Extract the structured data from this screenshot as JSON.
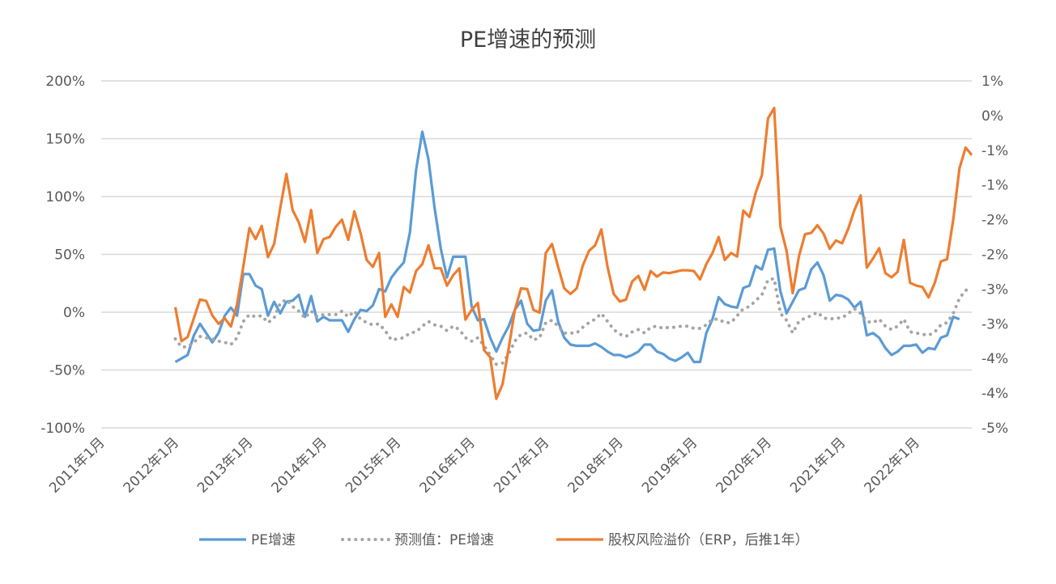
{
  "chart_data": {
    "type": "line",
    "title": "PE增速的预测",
    "x_axis": {
      "type": "date",
      "range": [
        "2011-01",
        "2022-10"
      ],
      "tick_labels": [
        "2011年1月",
        "2012年1月",
        "2013年1月",
        "2014年1月",
        "2015年1月",
        "2016年1月",
        "2017年1月",
        "2018年1月",
        "2019年1月",
        "2020年1月",
        "2021年1月",
        "2022年1月"
      ],
      "tick_dates": [
        "2011-01",
        "2012-01",
        "2013-01",
        "2014-01",
        "2015-01",
        "2016-01",
        "2017-01",
        "2018-01",
        "2019-01",
        "2020-01",
        "2021-01",
        "2022-01"
      ]
    },
    "y_left": {
      "range": [
        -100,
        200
      ],
      "unit": "%",
      "ticks": [
        200,
        150,
        100,
        50,
        0,
        -50,
        -100
      ],
      "tick_labels": [
        "200%",
        "150%",
        "100%",
        "50%",
        "0%",
        "-50%",
        "-100%"
      ]
    },
    "y_right": {
      "range": [
        -4.5,
        0.5
      ],
      "unit": "%",
      "ticks": [
        0.5,
        0,
        -0.5,
        -1,
        -1.5,
        -2,
        -2.5,
        -3,
        -3.5,
        -4,
        -4.5
      ],
      "tick_labels": [
        "1%",
        "0%",
        "-1%",
        "-1%",
        "-2%",
        "-2%",
        "-3%",
        "-3%",
        "-4%",
        "-4%",
        "-5%"
      ]
    },
    "grid": true,
    "legend_position": "bottom",
    "x": [
      "2012-01",
      "2012-02",
      "2012-03",
      "2012-04",
      "2012-05",
      "2012-06",
      "2012-07",
      "2012-08",
      "2012-09",
      "2012-10",
      "2012-11",
      "2012-12",
      "2013-01",
      "2013-02",
      "2013-03",
      "2013-04",
      "2013-05",
      "2013-06",
      "2013-07",
      "2013-08",
      "2013-09",
      "2013-10",
      "2013-11",
      "2013-12",
      "2014-01",
      "2014-02",
      "2014-03",
      "2014-04",
      "2014-05",
      "2014-06",
      "2014-07",
      "2014-08",
      "2014-09",
      "2014-10",
      "2014-11",
      "2014-12",
      "2015-01",
      "2015-02",
      "2015-03",
      "2015-04",
      "2015-05",
      "2015-06",
      "2015-07",
      "2015-08",
      "2015-09",
      "2015-10",
      "2015-11",
      "2015-12",
      "2016-01",
      "2016-02",
      "2016-03",
      "2016-04",
      "2016-05",
      "2016-06",
      "2016-07",
      "2016-08",
      "2016-09",
      "2016-10",
      "2016-11",
      "2016-12",
      "2017-01",
      "2017-02",
      "2017-03",
      "2017-04",
      "2017-05",
      "2017-06",
      "2017-07",
      "2017-08",
      "2017-09",
      "2017-10",
      "2017-11",
      "2017-12",
      "2018-01",
      "2018-02",
      "2018-03",
      "2018-04",
      "2018-05",
      "2018-06",
      "2018-07",
      "2018-08",
      "2018-09",
      "2018-10",
      "2018-11",
      "2018-12",
      "2019-01",
      "2019-02",
      "2019-03",
      "2019-04",
      "2019-05",
      "2019-06",
      "2019-07",
      "2019-08",
      "2019-09",
      "2019-10",
      "2019-11",
      "2019-12",
      "2020-01",
      "2020-02",
      "2020-03",
      "2020-04",
      "2020-05",
      "2020-06",
      "2020-07",
      "2020-08",
      "2020-09",
      "2020-10",
      "2020-11",
      "2020-12",
      "2021-01",
      "2021-02",
      "2021-03",
      "2021-04",
      "2021-05",
      "2021-06",
      "2021-07",
      "2021-08",
      "2021-09",
      "2021-10",
      "2021-11",
      "2021-12",
      "2022-01",
      "2022-02",
      "2022-03",
      "2022-04",
      "2022-05",
      "2022-06",
      "2022-07",
      "2022-08",
      "2022-09",
      "2022-10"
    ],
    "series": [
      {
        "name": "PE增速",
        "axis": "left",
        "color": "#5B9BD5",
        "style": "solid",
        "values": [
          -43,
          -40,
          -37,
          -20,
          -10,
          -18,
          -26,
          -18,
          -3,
          4,
          -3,
          33,
          33,
          23,
          20,
          -3,
          9,
          -1,
          9,
          10,
          15,
          -4,
          14,
          -8,
          -4,
          -7,
          -7,
          -7,
          -17,
          -6,
          2,
          1,
          6,
          20,
          18,
          30,
          37,
          43,
          69,
          123,
          156,
          132,
          90,
          55,
          30,
          48,
          48,
          48,
          5,
          -7,
          -6,
          -22,
          -34,
          -22,
          -12,
          2,
          10,
          -10,
          -16,
          -15,
          10,
          19,
          -8,
          -22,
          -28,
          -29,
          -29,
          -29,
          -27,
          -30,
          -34,
          -37,
          -37,
          -39,
          -37,
          -34,
          -28,
          -28,
          -34,
          -36,
          -40,
          -42,
          -39,
          -35,
          -43,
          -43,
          -18,
          -6,
          13,
          7,
          5,
          4,
          21,
          23,
          40,
          37,
          54,
          55,
          18,
          -1,
          9,
          19,
          21,
          37,
          43,
          32,
          10,
          15,
          14,
          11,
          4,
          9,
          -20,
          -18,
          -22,
          -31,
          -37,
          -34,
          -29,
          -29,
          -28,
          -35,
          -31,
          -32,
          -22,
          -20,
          -4,
          -6,
          null,
          null
        ]
      },
      {
        "name": "预测值：PE增速",
        "axis": "left",
        "color": "#A5A5A5",
        "style": "dotted",
        "values": [
          -23,
          -30,
          -30,
          -26,
          -21,
          -22,
          -23,
          -25,
          -26,
          -28,
          -22,
          -8,
          -2,
          -4,
          -3,
          -9,
          -5,
          8,
          11,
          5,
          1,
          -5,
          1,
          -4,
          -2,
          -2,
          -2,
          1,
          -4,
          1,
          -6,
          -9,
          -11,
          -10,
          -16,
          -24,
          -23,
          -22,
          -18,
          -17,
          -12,
          -8,
          -11,
          -12,
          -16,
          -12,
          -15,
          -22,
          -25,
          -22,
          -29,
          -37,
          -45,
          -44,
          -36,
          -25,
          -19,
          -18,
          -24,
          -22,
          -9,
          -7,
          -12,
          -18,
          -18,
          -18,
          -13,
          -9,
          -6,
          -1,
          -8,
          -15,
          -19,
          -21,
          -17,
          -15,
          -18,
          -13,
          -12,
          -14,
          -13,
          -13,
          -12,
          -12,
          -14,
          -14,
          -11,
          -6,
          -6,
          -9,
          -9,
          -3,
          3,
          5,
          10,
          15,
          28,
          29,
          -1,
          -7,
          -18,
          -8,
          -5,
          -3,
          0,
          -5,
          -6,
          -5,
          -5,
          -1,
          3,
          -1,
          -8,
          -9,
          -6,
          -12,
          -15,
          -12,
          -6,
          -17,
          -18,
          -19,
          -20,
          -17,
          -11,
          -9,
          -1,
          12,
          19,
          20
        ]
      },
      {
        "name": "股权风险溢价（ERP，后推1年）",
        "axis": "right",
        "color": "#ED7D31",
        "style": "solid",
        "values": [
          -2.76,
          -3.25,
          -3.19,
          -2.92,
          -2.65,
          -2.67,
          -2.88,
          -3.0,
          -2.92,
          -3.04,
          -2.72,
          -2.18,
          -1.62,
          -1.78,
          -1.59,
          -2.04,
          -1.85,
          -1.33,
          -0.84,
          -1.36,
          -1.54,
          -1.82,
          -1.36,
          -1.98,
          -1.78,
          -1.75,
          -1.6,
          -1.5,
          -1.79,
          -1.38,
          -1.69,
          -2.08,
          -2.18,
          -1.98,
          -2.9,
          -2.72,
          -2.9,
          -2.47,
          -2.55,
          -2.24,
          -2.14,
          -1.87,
          -2.2,
          -2.2,
          -2.45,
          -2.3,
          -2.2,
          -2.94,
          -2.8,
          -2.7,
          -3.38,
          -3.48,
          -4.08,
          -3.87,
          -3.35,
          -2.8,
          -2.49,
          -2.5,
          -2.8,
          -2.84,
          -1.98,
          -1.85,
          -2.18,
          -2.49,
          -2.57,
          -2.49,
          -2.16,
          -1.95,
          -1.87,
          -1.64,
          -2.18,
          -2.57,
          -2.68,
          -2.65,
          -2.39,
          -2.31,
          -2.51,
          -2.24,
          -2.32,
          -2.26,
          -2.27,
          -2.25,
          -2.23,
          -2.23,
          -2.24,
          -2.36,
          -2.14,
          -1.98,
          -1.75,
          -2.08,
          -1.98,
          -2.03,
          -1.37,
          -1.46,
          -1.11,
          -0.86,
          -0.04,
          0.11,
          -1.6,
          -1.95,
          -2.56,
          -2.03,
          -1.71,
          -1.69,
          -1.58,
          -1.7,
          -1.92,
          -1.8,
          -1.84,
          -1.63,
          -1.36,
          -1.15,
          -2.19,
          -2.06,
          -1.91,
          -2.27,
          -2.33,
          -2.25,
          -1.79,
          -2.41,
          -2.45,
          -2.47,
          -2.62,
          -2.41,
          -2.1,
          -2.07,
          -1.5,
          -0.76,
          -0.46,
          -0.57
        ]
      }
    ]
  }
}
